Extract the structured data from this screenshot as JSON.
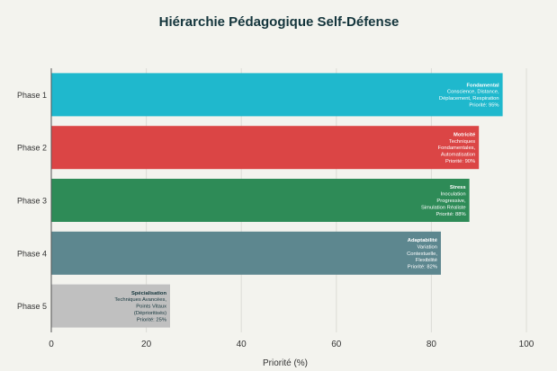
{
  "chart_data": {
    "type": "bar",
    "orientation": "horizontal",
    "title": "Hiérarchie Pédagogique Self-Défense",
    "xlabel": "Priorité (%)",
    "ylabel": "",
    "xlim": [
      0,
      100
    ],
    "xticks": [
      0,
      20,
      40,
      60,
      80,
      100
    ],
    "grid": true,
    "categories": [
      "Phase 1",
      "Phase 2",
      "Phase 3",
      "Phase 4",
      "Phase 5"
    ],
    "values": [
      95,
      90,
      88,
      82,
      25
    ],
    "colors": [
      "#1fb8cd",
      "#db4545",
      "#2e8b57",
      "#5d878f",
      "#c0c0c0"
    ],
    "text_colors": [
      "#ffffff",
      "#ffffff",
      "#ffffff",
      "#ffffff",
      "#13343b"
    ],
    "labels": [
      [
        "Fondamental",
        "Conscience, Distance,",
        "Déplacement, Respiration",
        "Priorité: 95%"
      ],
      [
        "Motricité",
        "Techniques",
        "Fondamentales,",
        "Automatisation",
        "Priorité: 90%"
      ],
      [
        "Stress",
        "Inoculation",
        "Progressive,",
        "Simulation Réaliste",
        "Priorité: 88%"
      ],
      [
        "Adaptabilité",
        "Variation",
        "Contextuelle,",
        "Flexibilité",
        "Priorité: 82%"
      ],
      [
        "Spécialisation",
        "Techniques Avancées,",
        "Points Vitaux",
        "(Déprioritisés)",
        "Priorité: 25%"
      ]
    ]
  }
}
